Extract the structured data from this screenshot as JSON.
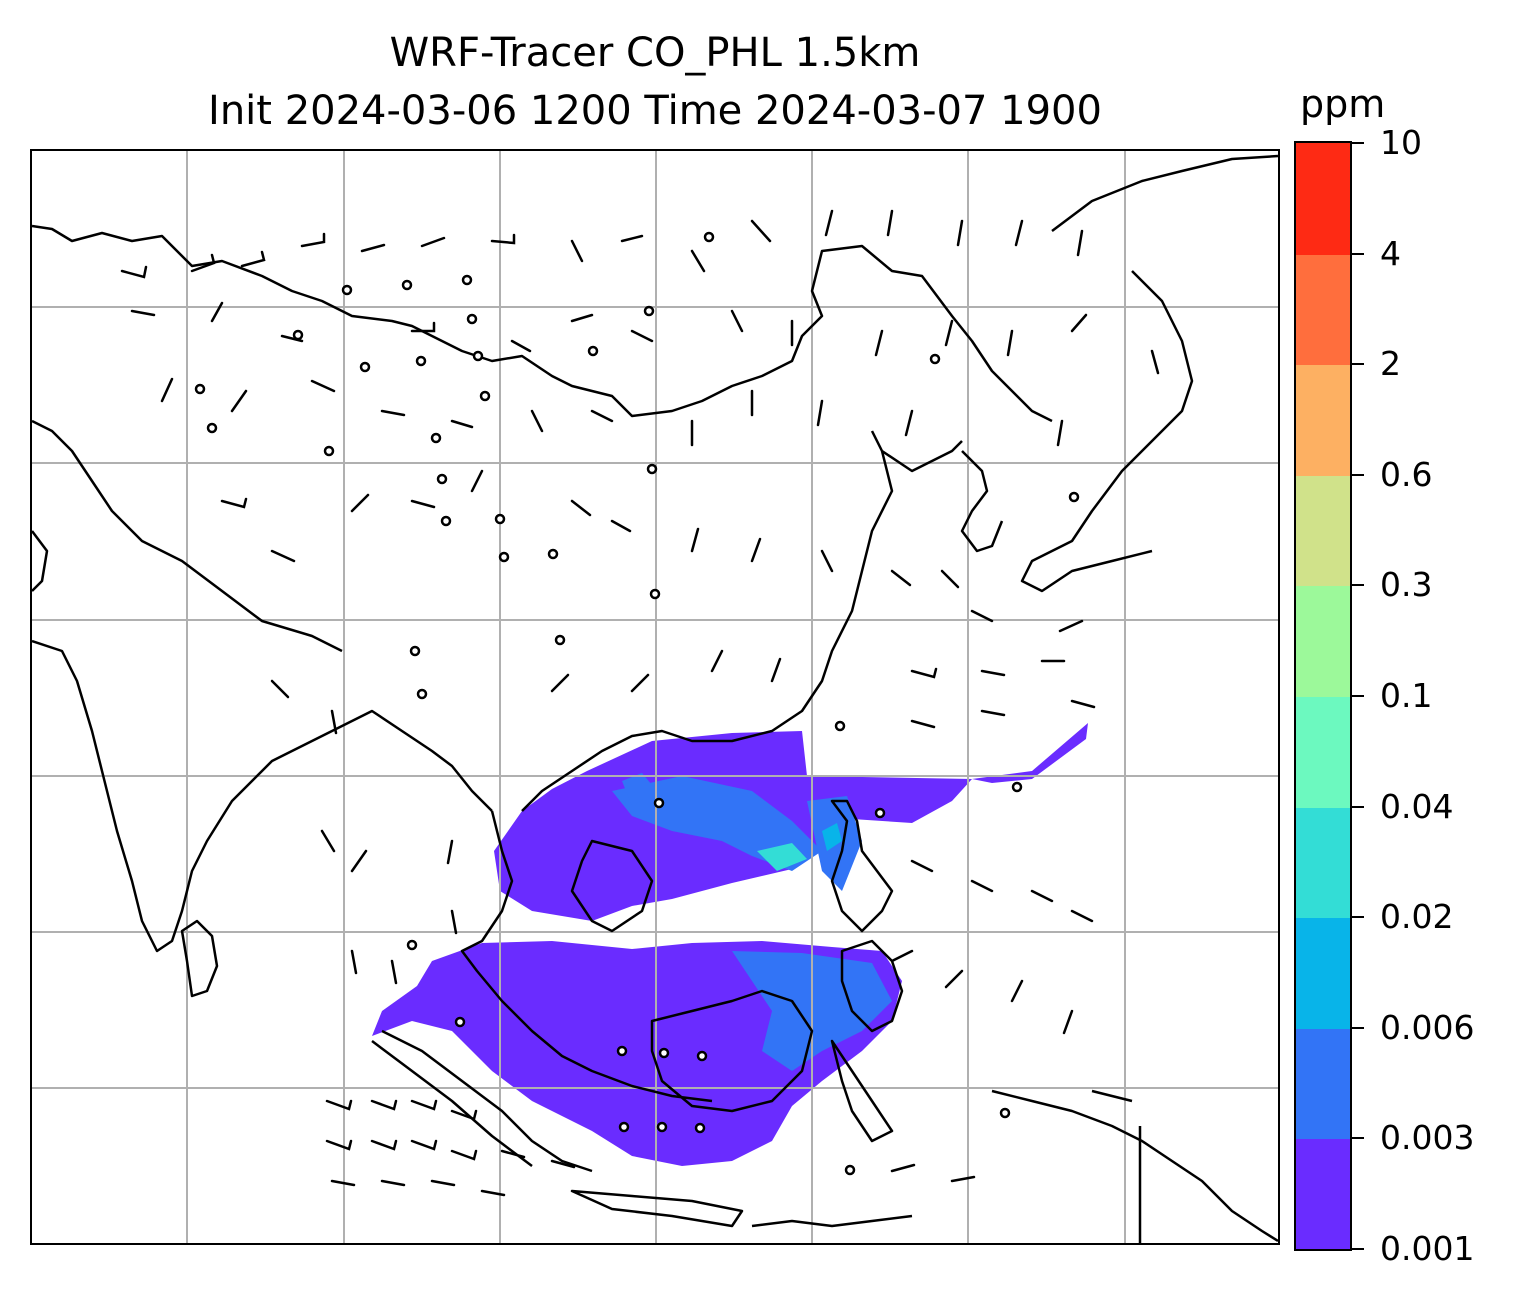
{
  "title": {
    "line1": "WRF-Tracer CO_PHL 1.5km",
    "line2": "Init 2024-03-06 1200 Time 2024-03-07 1900"
  },
  "colorbar": {
    "unit": "ppm",
    "levels": [
      {
        "label": "0.001",
        "color": "#6a2cff"
      },
      {
        "label": "0.003",
        "color": "#3274f6"
      },
      {
        "label": "0.006",
        "color": "#08b4e9"
      },
      {
        "label": "0.02",
        "color": "#33ddd6"
      },
      {
        "label": "0.04",
        "color": "#6cf9bf"
      },
      {
        "label": "0.1",
        "color": "#9cf99a"
      },
      {
        "label": "0.3",
        "color": "#d0e28a"
      },
      {
        "label": "0.6",
        "color": "#fdb062"
      },
      {
        "label": "2",
        "color": "#ff6e3d"
      },
      {
        "label": "4",
        "color": "#fe2a14"
      },
      {
        "label": "10",
        "color": null
      }
    ]
  },
  "map": {
    "gridlines": true,
    "gridline_color": "#b0b0b0",
    "coastline_color": "#000000",
    "wind_barbs": true
  }
}
